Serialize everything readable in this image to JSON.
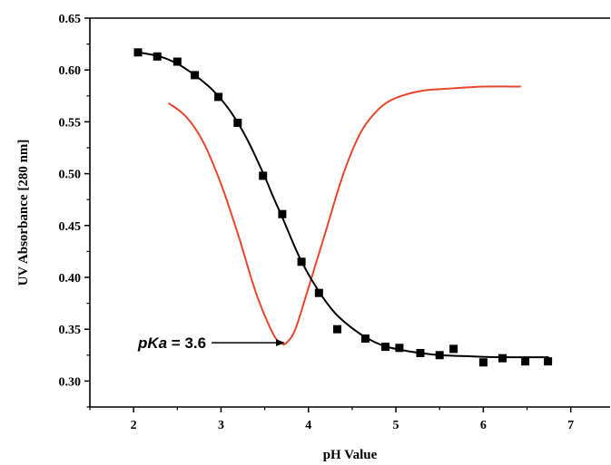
{
  "chart_data": {
    "type": "scatter",
    "xlabel": "pH Value",
    "ylabel": "UV Absorbance [280 nm]",
    "xlim": [
      1.5,
      7.45
    ],
    "ylim": [
      0.275,
      0.65
    ],
    "x_ticks": [
      2,
      3,
      4,
      5,
      6,
      7
    ],
    "y_ticks": [
      "0.30",
      "0.35",
      "0.40",
      "0.45",
      "0.50",
      "0.55",
      "0.60",
      "0.65"
    ],
    "grid": false,
    "series": [
      {
        "kind": "points",
        "color": "#000000",
        "marker": "square",
        "x": [
          2.05,
          2.27,
          2.5,
          2.7,
          2.97,
          3.19,
          3.48,
          3.7,
          3.92,
          4.12,
          4.33,
          4.65,
          4.88,
          5.04,
          5.28,
          5.5,
          5.66,
          6.0,
          6.22,
          6.48,
          6.74
        ],
        "y": [
          0.617,
          0.613,
          0.608,
          0.595,
          0.574,
          0.549,
          0.498,
          0.461,
          0.415,
          0.385,
          0.35,
          0.341,
          0.333,
          0.332,
          0.327,
          0.325,
          0.331,
          0.318,
          0.322,
          0.319,
          0.319
        ]
      },
      {
        "kind": "fit",
        "color": "#000000",
        "x": [
          2.05,
          2.3,
          2.5,
          2.7,
          2.9,
          3.1,
          3.3,
          3.5,
          3.6,
          3.7,
          3.9,
          4.1,
          4.3,
          4.5,
          4.7,
          4.9,
          5.2,
          5.5,
          5.8,
          6.2,
          6.75
        ],
        "y": [
          0.617,
          0.613,
          0.606,
          0.595,
          0.581,
          0.561,
          0.533,
          0.497,
          0.477,
          0.458,
          0.419,
          0.389,
          0.366,
          0.351,
          0.34,
          0.333,
          0.328,
          0.325,
          0.324,
          0.323,
          0.323
        ]
      },
      {
        "kind": "derivative",
        "color": "#e8462a",
        "x": [
          2.4,
          2.6,
          2.8,
          3.0,
          3.2,
          3.4,
          3.6,
          3.7,
          3.75,
          3.85,
          4.0,
          4.2,
          4.4,
          4.6,
          4.8,
          5.0,
          5.3,
          5.6,
          6.0,
          6.43
        ],
        "y": [
          0.568,
          0.555,
          0.53,
          0.49,
          0.44,
          0.385,
          0.345,
          0.336,
          0.337,
          0.35,
          0.39,
          0.445,
          0.5,
          0.54,
          0.562,
          0.573,
          0.58,
          0.582,
          0.584,
          0.584
        ]
      }
    ],
    "annotation": {
      "prefix": "pKa",
      "suffix": " = 3.6",
      "arrow_to": {
        "x": 3.72,
        "y": 0.337
      },
      "text_at": {
        "x": 2.05,
        "y": 0.337
      }
    }
  }
}
